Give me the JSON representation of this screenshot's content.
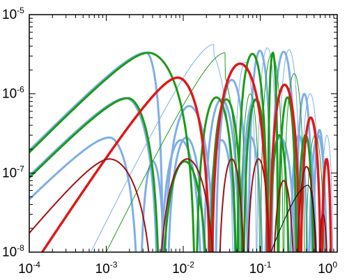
{
  "chart_data": {
    "type": "line",
    "xscale": "log",
    "yscale": "log",
    "xlim": [
      0.0001,
      1
    ],
    "ylim": [
      1e-08,
      1e-05
    ],
    "grid": false,
    "legend": "none",
    "x_ticks": [
      {
        "base": "10",
        "exp": "-4",
        "value": 0.0001
      },
      {
        "base": "10",
        "exp": "-3",
        "value": 0.001
      },
      {
        "base": "10",
        "exp": "-2",
        "value": 0.01
      },
      {
        "base": "10",
        "exp": "-1",
        "value": 0.1
      },
      {
        "base": "10",
        "exp": "0",
        "value": 1
      }
    ],
    "y_ticks": [
      {
        "base": "10",
        "exp": "-8",
        "value": 1e-08
      },
      {
        "base": "10",
        "exp": "-7",
        "value": 1e-07
      },
      {
        "base": "10",
        "exp": "-6",
        "value": 1e-06
      },
      {
        "base": "10",
        "exp": "-5",
        "value": 1e-05
      }
    ],
    "series": [
      {
        "color": "#7eaee8",
        "width": 3,
        "peak_x": 0.0033,
        "peak_y": 3.3e-06,
        "low_slope": 1.0,
        "nulls": [
          0.0055,
          0.026,
          0.07,
          0.14,
          0.29,
          0.48,
          0.72
        ],
        "lobe_peaks": [
          3.3e-06,
          7e-07,
          1.5e-06,
          3.5e-06,
          3.4e-06,
          1e-06,
          3.5e-07
        ]
      },
      {
        "color": "#7eaee8",
        "width": 3,
        "peak_x": 0.0018,
        "peak_y": 8.8e-07,
        "low_slope": 1.0,
        "nulls": [
          0.0048,
          0.018,
          0.055,
          0.13,
          0.24,
          0.42,
          0.75
        ],
        "lobe_peaks": [
          8.8e-07,
          2.6e-07,
          8.5e-07,
          8.5e-07,
          3e-07,
          3e-07,
          3e-07
        ]
      },
      {
        "color": "#7eaee8",
        "width": 3,
        "peak_x": 0.0011,
        "peak_y": 2.8e-07,
        "low_slope": 1.0,
        "nulls": [
          0.0027,
          0.006,
          0.02,
          0.05,
          0.11,
          0.3,
          0.55
        ],
        "lobe_peaks": [
          2.8e-07,
          1.4e-07,
          2.8e-07,
          2.6e-07,
          2.9e-07,
          2.8e-07,
          2.6e-07
        ]
      },
      {
        "color": "#7eaee8",
        "width": 1,
        "peak_x": 0.025,
        "peak_y": 4.2e-06,
        "low_slope": 2.0,
        "nulls": [
          0.0075,
          0.045,
          0.09,
          0.17,
          0.33,
          0.6,
          0.9
        ],
        "lobe_peaks": [
          3e-07,
          4.2e-06,
          2.5e-06,
          3.8e-06,
          3.6e-06,
          1e-06,
          3e-07
        ]
      },
      {
        "color": "#1a9a1a",
        "width": 3,
        "peak_x": 0.0035,
        "peak_y": 3.3e-06,
        "low_slope": 1.0,
        "nulls": [
          0.0145,
          0.05,
          0.125,
          0.17,
          0.3,
          0.5
        ],
        "lobe_peaks": [
          3.3e-06,
          9e-07,
          3.2e-06,
          3.3e-06,
          9e-07,
          3e-07
        ]
      },
      {
        "color": "#1a9a1a",
        "width": 3,
        "peak_x": 0.0019,
        "peak_y": 8.8e-07,
        "low_slope": 1.0,
        "nulls": [
          0.005,
          0.022,
          0.06,
          0.13,
          0.24
        ],
        "lobe_peaks": [
          8.8e-07,
          1.4e-07,
          8.5e-07,
          8.5e-07,
          3e-07
        ]
      },
      {
        "color": "#1a9a1a",
        "width": 1,
        "peak_x": 0.035,
        "peak_y": 3.3e-06,
        "low_slope": 2.0,
        "nulls": [
          0.009,
          0.055,
          0.1,
          0.2,
          0.38,
          0.7
        ],
        "lobe_peaks": [
          2.6e-07,
          3.3e-06,
          1e-06,
          3.2e-06,
          1.8e-06,
          3e-07
        ]
      },
      {
        "color": "#e01818",
        "width": 3.5,
        "peak_x": 0.0085,
        "peak_y": 1.6e-06,
        "low_slope": 1.5,
        "nulls": [
          0.023,
          0.13,
          0.33,
          0.62,
          0.85
        ],
        "lobe_peaks": [
          1.6e-06,
          2.4e-06,
          1.3e-06,
          5e-07,
          1.5e-07
        ]
      },
      {
        "color": "#a01010",
        "width": 2,
        "peak_x": 0.0011,
        "peak_y": 1.5e-07,
        "low_slope": 1.2,
        "nulls": [
          0.0045,
          0.028,
          0.065,
          0.14,
          0.29,
          0.55,
          0.78
        ],
        "lobe_peaks": [
          1.5e-07,
          1.5e-07,
          1.5e-07,
          1.5e-07,
          8e-08,
          1.2e-07,
          3e-08
        ]
      },
      {
        "color": "#000000",
        "width": 1,
        "peak_x": 0.42,
        "peak_y": 7e-08,
        "low_slope": 3.0,
        "nulls": [
          0.3,
          0.58
        ],
        "lobe_peaks": [
          7e-08
        ]
      }
    ]
  }
}
